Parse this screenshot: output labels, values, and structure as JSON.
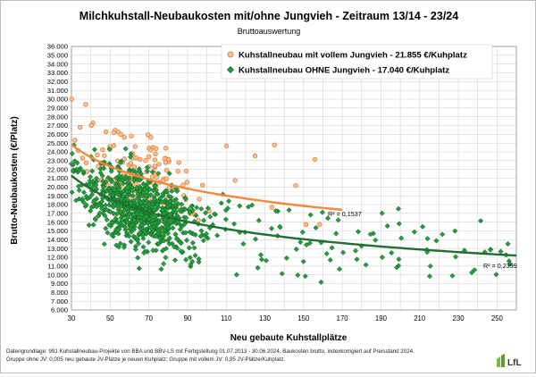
{
  "chart_data": {
    "type": "scatter",
    "title": "Milchkuhstall-Neubaukosten mit/ohne Jungvieh - Zeitraum 13/14 - 23/24",
    "subtitle": "Bruttoauswertung",
    "xlabel": "Neu gebaute Kuhstallplätze",
    "ylabel": "Brutto-Neubaukosten (€/Platz)",
    "xlim": [
      30,
      260
    ],
    "ylim": [
      6000,
      36000
    ],
    "x_ticks": [
      "30",
      "50",
      "70",
      "90",
      "110",
      "130",
      "150",
      "170",
      "190",
      "210",
      "230",
      "250"
    ],
    "y_ticks": [
      "6.000",
      "7.000",
      "8.000",
      "9.000",
      "10.000",
      "11.000",
      "12.000",
      "13.000",
      "14.000",
      "15.000",
      "16.000",
      "17.000",
      "18.000",
      "19.000",
      "20.000",
      "21.000",
      "22.000",
      "23.000",
      "24.000",
      "25.000",
      "26.000",
      "27.000",
      "28.000",
      "29.000",
      "30.000",
      "31.000",
      "32.000",
      "33.000",
      "34.000",
      "35.000",
      "36.000"
    ],
    "grid": true,
    "legend_position": "top-right",
    "series": [
      {
        "name": "Kuhstallneubau mit vollem Jungvieh - 21.855 €/Kuhplatz",
        "color": "#f0a060",
        "marker": "circle",
        "n_points": 150,
        "x_range": [
          30,
          170
        ],
        "trend": {
          "type": "power",
          "x": [
            30,
            170
          ],
          "y": [
            24800,
            17400
          ],
          "label": "R² = 0,1537",
          "color": "#f08a3c"
        }
      },
      {
        "name": "Kuhstallneubau OHNE Jungvieh - 17.040 €/Kuhplatz",
        "color": "#22a03c",
        "marker": "diamond",
        "n_points": 841,
        "x_range": [
          30,
          258
        ],
        "trend": {
          "type": "power",
          "x": [
            30,
            260
          ],
          "y": [
            21300,
            12200
          ],
          "label": "R² = 0,2399",
          "color": "#1f6e32"
        }
      }
    ]
  },
  "footnote": {
    "line1": "Datengrundlage: 991 Kuhstallneubau-Projekte von BBA und BBV-LS  mit Fertigstellung 01.07.2013 - 30.06.2024, Baukosten brutto, indexkorrigiert auf Preisstand 2024.",
    "line2": "Gruppe ohne JV: 0,005 neu gebaute JV-Plätze je neuen Kuhplatz; Gruppe mit vollem JV: 0,95 JV-Plätze/Kuhplatz."
  },
  "logo": {
    "text": "LfL",
    "color": "#5aa02c"
  }
}
